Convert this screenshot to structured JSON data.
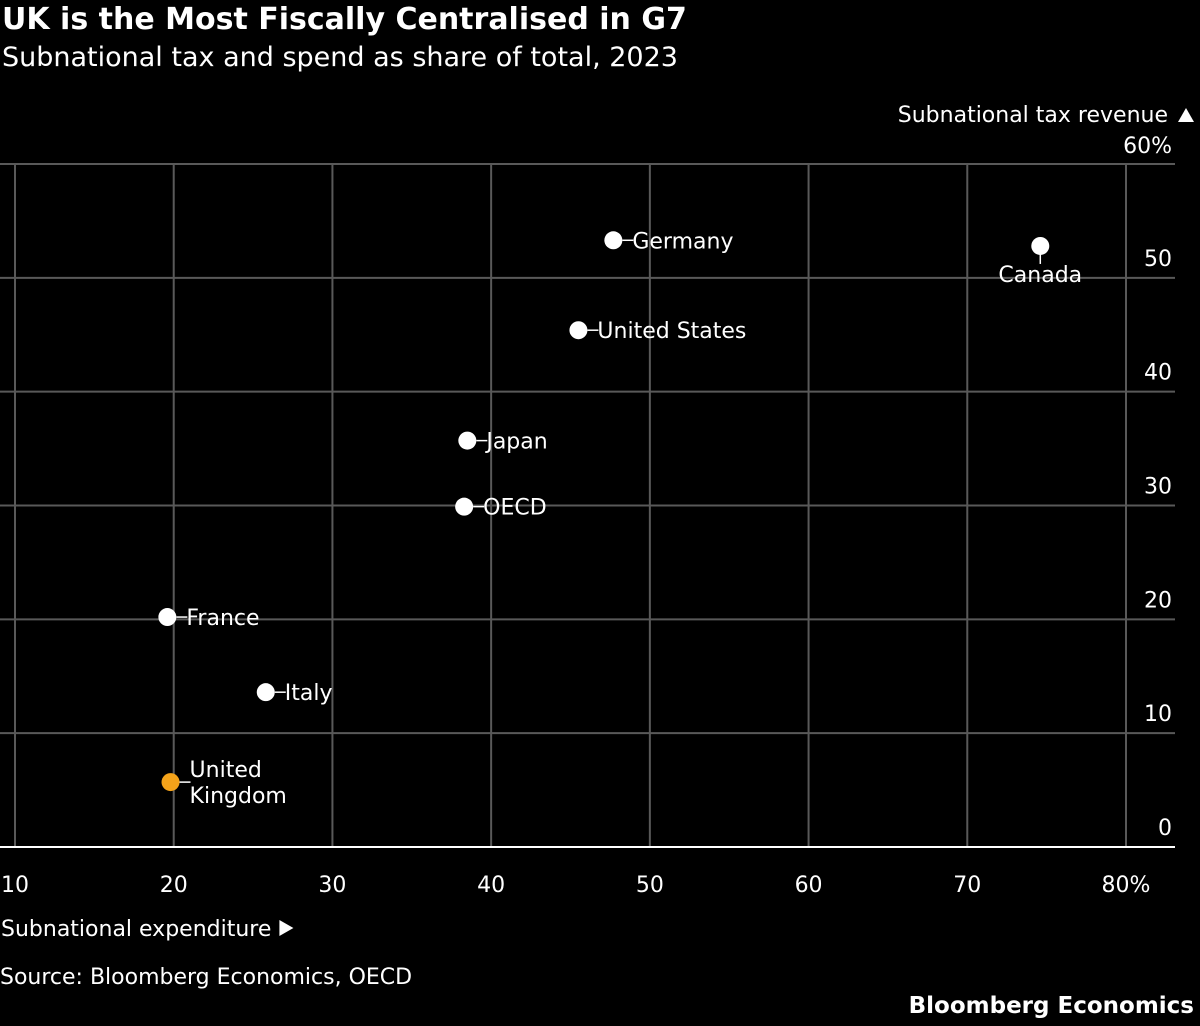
{
  "header": {
    "title": "UK is the Most Fiscally Centralised in G7",
    "subtitle": "Subnational tax and spend as share of total, 2023"
  },
  "footer": {
    "source": "Source: Bloomberg Economics, OECD",
    "brand": "Bloomberg Economics"
  },
  "colors": {
    "background": "#000000",
    "text": "#ffffff",
    "grid": "#595959",
    "point": "#ffffff",
    "highlight": "#f5a31a"
  },
  "chart_data": {
    "type": "scatter",
    "title": "UK is the Most Fiscally Centralised in G7",
    "subtitle": "Subnational tax and spend as share of total, 2023",
    "xlabel": "Subnational expenditure",
    "ylabel": "Subnational tax revenue",
    "xlim": [
      10,
      80
    ],
    "ylim": [
      0,
      60
    ],
    "x_ticks": [
      10,
      20,
      30,
      40,
      50,
      60,
      70,
      80
    ],
    "x_tick_labels": [
      "10",
      "20",
      "30",
      "40",
      "50",
      "60",
      "70",
      "80%"
    ],
    "y_ticks": [
      0,
      10,
      20,
      30,
      40,
      50,
      60
    ],
    "y_tick_labels": [
      "0",
      "10",
      "20",
      "30",
      "40",
      "50",
      "60%"
    ],
    "grid": true,
    "y_axis_side": "right",
    "points": [
      {
        "label": "Germany",
        "x": 47.7,
        "y": 53.3,
        "label_position": "right",
        "highlight": false
      },
      {
        "label": "Canada",
        "x": 74.6,
        "y": 52.8,
        "label_position": "below",
        "highlight": false
      },
      {
        "label": "United States",
        "x": 45.5,
        "y": 45.4,
        "label_position": "right",
        "highlight": false
      },
      {
        "label": "Japan",
        "x": 38.5,
        "y": 35.7,
        "label_position": "right",
        "highlight": false
      },
      {
        "label": "OECD",
        "x": 38.3,
        "y": 29.9,
        "label_position": "right",
        "highlight": false
      },
      {
        "label": "France",
        "x": 19.6,
        "y": 20.2,
        "label_position": "right",
        "highlight": false
      },
      {
        "label": "Italy",
        "x": 25.8,
        "y": 13.6,
        "label_position": "right",
        "highlight": false
      },
      {
        "label": "United Kingdom",
        "x": 19.8,
        "y": 5.7,
        "label_position": "right",
        "highlight": true
      }
    ]
  }
}
